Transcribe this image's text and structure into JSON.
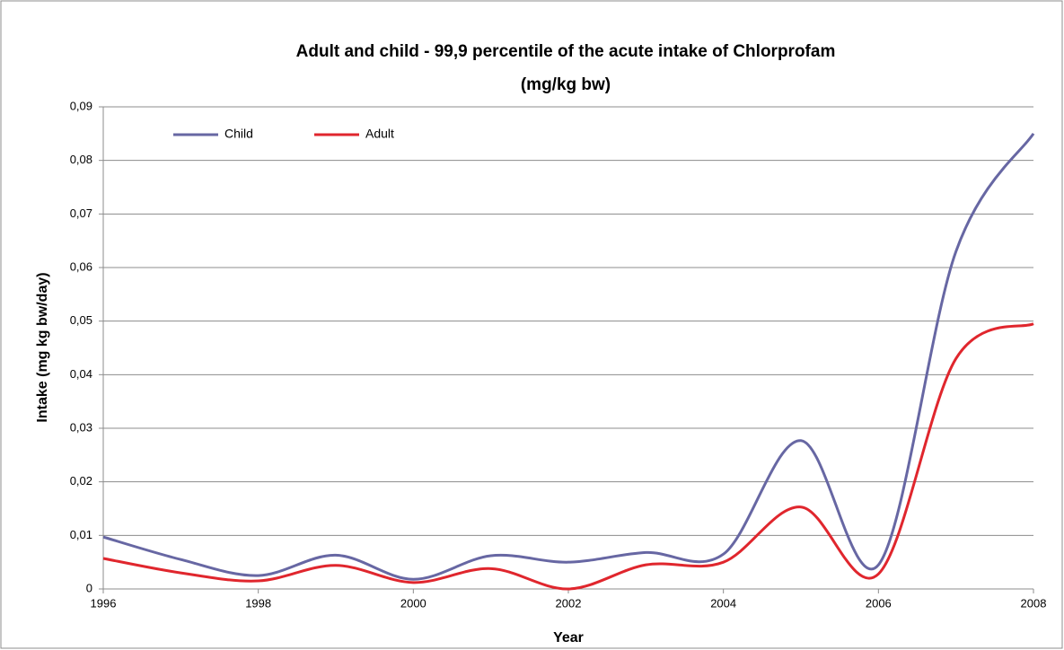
{
  "chart_data": {
    "type": "line",
    "title": "Adult and child - 99,9 percentile of the acute intake of Chlorprofam",
    "subtitle": "(mg/kg  bw)",
    "x_label": "Year",
    "y_label": "Intake (mg kg bw/day)",
    "x": [
      1996,
      1997,
      1998,
      1999,
      2000,
      2001,
      2002,
      2003,
      2004,
      2005,
      2006,
      2007,
      2008
    ],
    "series": [
      {
        "name": "Child",
        "color": "#6767a3",
        "values": [
          0.0097,
          0.0055,
          0.0025,
          0.0063,
          0.0018,
          0.0062,
          0.005,
          0.0068,
          0.0065,
          0.0277,
          0.0045,
          0.063,
          0.085
        ]
      },
      {
        "name": "Adult",
        "color": "#e0262d",
        "values": [
          0.0057,
          0.003,
          0.0015,
          0.0044,
          0.0012,
          0.0038,
          0.0,
          0.0045,
          0.005,
          0.0153,
          0.0028,
          0.043,
          0.0495
        ]
      }
    ],
    "xlim": [
      1996,
      2008
    ],
    "xticks": [
      1996,
      1998,
      2000,
      2002,
      2004,
      2006,
      2008
    ],
    "ylim": [
      0,
      0.09
    ],
    "yticks": [
      0,
      {
        "value": 0.01,
        "label": "0,01"
      },
      {
        "value": 0.02,
        "label": "0,02"
      },
      {
        "value": 0.03,
        "label": "0,03"
      },
      {
        "value": 0.04,
        "label": "0,04"
      },
      {
        "value": 0.05,
        "label": "0,05"
      },
      {
        "value": 0.06,
        "label": "0,06"
      },
      {
        "value": 0.07,
        "label": "0,07"
      },
      {
        "value": 0.08,
        "label": "0,08"
      },
      {
        "value": 0.09,
        "label": "0,09"
      }
    ],
    "grid": true,
    "smooth": true,
    "legend": "upper-left"
  }
}
